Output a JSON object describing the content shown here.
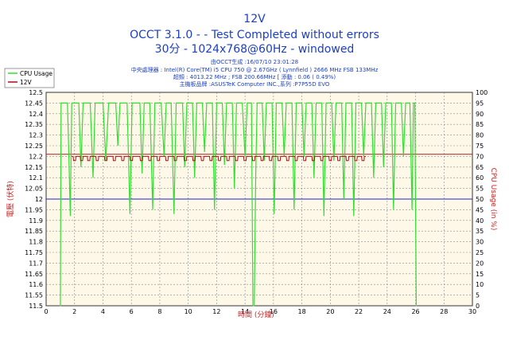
{
  "chart_data": {
    "type": "line",
    "title": "12V",
    "subtitle_lines": [
      "OCCT 3.1.0 -  - Test Completed without errors",
      "30分 - 1024x768@60Hz - windowed"
    ],
    "info_lines": [
      "由OCCT生成 :16/07/10 23:01:28",
      "中央處理器 : Intel(R) Core(TM) i5 CPU 750 @ 2.67GHz ( Lynnfield ) 2666 MHz FSB 133MHz",
      "超頻 : 4013.22 MHz ; FSB 200.66MHz [ 添動 : 0.06 ( 0.49%)",
      "主機板品牌 :ASUSTeK Computer INC.,系列 :P7P55D EVO"
    ],
    "xlabel": "時間 (分鐘)",
    "ylabel_left": "電壓 (伏特)",
    "ylabel_right": "CPU Usage (in %)",
    "xlim": [
      0,
      30
    ],
    "ylim_left": [
      11.5,
      12.5
    ],
    "ylim_right": [
      0,
      100
    ],
    "x_ticks": [
      "0",
      "2",
      "4",
      "6",
      "8",
      "10",
      "12",
      "14",
      "16",
      "18",
      "20",
      "22",
      "24",
      "26",
      "28",
      "30"
    ],
    "y_left_ticks": [
      "11.5",
      "11.55",
      "11.6",
      "11.65",
      "11.7",
      "11.75",
      "11.8",
      "11.85",
      "11.9",
      "11.95",
      "12",
      "12.05",
      "12.1",
      "12.15",
      "12.2",
      "12.25",
      "12.3",
      "12.35",
      "12.4",
      "12.45",
      "12.5"
    ],
    "y_right_ticks": [
      "0",
      "5",
      "10",
      "15",
      "20",
      "25",
      "30",
      "35",
      "40",
      "45",
      "50",
      "55",
      "60",
      "65",
      "70",
      "75",
      "80",
      "85",
      "90",
      "95",
      "100"
    ],
    "grid": true,
    "legend_position": "top-left",
    "series": [
      {
        "name": "CPU Usage",
        "axis": "right",
        "color": "#33dd33",
        "points": [
          [
            0.95,
            0
          ],
          [
            1.0,
            0
          ],
          [
            1.05,
            95
          ],
          [
            1.5,
            95
          ],
          [
            1.6,
            70
          ],
          [
            1.7,
            42
          ],
          [
            1.8,
            95
          ],
          [
            2.3,
            95
          ],
          [
            2.45,
            65
          ],
          [
            2.6,
            95
          ],
          [
            3.1,
            95
          ],
          [
            3.3,
            60
          ],
          [
            3.45,
            95
          ],
          [
            4.0,
            95
          ],
          [
            4.2,
            68
          ],
          [
            4.4,
            95
          ],
          [
            4.9,
            95
          ],
          [
            5.05,
            75
          ],
          [
            5.2,
            95
          ],
          [
            5.7,
            95
          ],
          [
            5.9,
            43
          ],
          [
            6.05,
            95
          ],
          [
            6.6,
            95
          ],
          [
            6.75,
            62
          ],
          [
            6.9,
            95
          ],
          [
            7.3,
            95
          ],
          [
            7.5,
            45
          ],
          [
            7.65,
            95
          ],
          [
            8.1,
            95
          ],
          [
            8.3,
            70
          ],
          [
            8.45,
            95
          ],
          [
            8.8,
            95
          ],
          [
            9.0,
            43
          ],
          [
            9.15,
            95
          ],
          [
            9.6,
            95
          ],
          [
            9.75,
            65
          ],
          [
            9.9,
            95
          ],
          [
            10.3,
            95
          ],
          [
            10.45,
            60
          ],
          [
            10.6,
            95
          ],
          [
            11.0,
            95
          ],
          [
            11.15,
            72
          ],
          [
            11.3,
            95
          ],
          [
            11.7,
            95
          ],
          [
            11.85,
            45
          ],
          [
            12.0,
            95
          ],
          [
            12.4,
            95
          ],
          [
            12.55,
            66
          ],
          [
            12.7,
            95
          ],
          [
            13.1,
            95
          ],
          [
            13.25,
            55
          ],
          [
            13.4,
            95
          ],
          [
            13.8,
            95
          ],
          [
            14.0,
            70
          ],
          [
            14.15,
            95
          ],
          [
            14.45,
            95
          ],
          [
            14.55,
            0
          ],
          [
            14.65,
            0
          ],
          [
            14.75,
            60
          ],
          [
            14.85,
            95
          ],
          [
            15.2,
            95
          ],
          [
            15.35,
            68
          ],
          [
            15.5,
            95
          ],
          [
            15.9,
            95
          ],
          [
            16.05,
            43
          ],
          [
            16.2,
            95
          ],
          [
            16.6,
            95
          ],
          [
            16.75,
            70
          ],
          [
            16.9,
            95
          ],
          [
            17.3,
            95
          ],
          [
            17.45,
            45
          ],
          [
            17.6,
            95
          ],
          [
            18.0,
            95
          ],
          [
            18.15,
            70
          ],
          [
            18.3,
            95
          ],
          [
            18.7,
            95
          ],
          [
            18.85,
            60
          ],
          [
            19.0,
            95
          ],
          [
            19.4,
            95
          ],
          [
            19.55,
            42
          ],
          [
            19.7,
            95
          ],
          [
            20.1,
            95
          ],
          [
            20.25,
            68
          ],
          [
            20.4,
            95
          ],
          [
            20.8,
            95
          ],
          [
            20.95,
            50
          ],
          [
            21.1,
            95
          ],
          [
            21.5,
            95
          ],
          [
            21.65,
            42
          ],
          [
            21.8,
            95
          ],
          [
            22.2,
            95
          ],
          [
            22.35,
            70
          ],
          [
            22.5,
            95
          ],
          [
            22.9,
            95
          ],
          [
            23.05,
            60
          ],
          [
            23.2,
            95
          ],
          [
            23.6,
            95
          ],
          [
            23.75,
            65
          ],
          [
            23.9,
            95
          ],
          [
            24.3,
            95
          ],
          [
            24.45,
            45
          ],
          [
            24.6,
            95
          ],
          [
            25.0,
            95
          ],
          [
            25.15,
            70
          ],
          [
            25.3,
            95
          ],
          [
            25.6,
            95
          ],
          [
            25.75,
            45
          ],
          [
            25.85,
            95
          ],
          [
            25.95,
            95
          ],
          [
            26.05,
            0
          ],
          [
            26.1,
            0
          ]
        ]
      },
      {
        "name": "12V",
        "axis": "left",
        "color": "#aa1111",
        "baseline": 12.2,
        "pulse_value": 12.18,
        "pulses": [
          [
            1.9,
            2.1
          ],
          [
            2.4,
            2.6
          ],
          [
            2.9,
            3.1
          ],
          [
            3.5,
            3.7
          ],
          [
            4.1,
            4.3
          ],
          [
            4.7,
            4.9
          ],
          [
            5.3,
            5.5
          ],
          [
            5.9,
            6.1
          ],
          [
            6.6,
            6.8
          ],
          [
            7.2,
            7.4
          ],
          [
            7.8,
            8.0
          ],
          [
            8.4,
            8.6
          ],
          [
            9.0,
            9.2
          ],
          [
            9.7,
            9.9
          ],
          [
            10.3,
            10.5
          ],
          [
            10.9,
            11.1
          ],
          [
            11.5,
            11.7
          ],
          [
            12.1,
            12.3
          ],
          [
            12.7,
            12.9
          ],
          [
            13.3,
            13.5
          ],
          [
            13.9,
            14.1
          ],
          [
            14.5,
            14.7
          ],
          [
            15.1,
            15.3
          ],
          [
            15.7,
            15.9
          ],
          [
            16.3,
            16.5
          ],
          [
            16.9,
            17.1
          ],
          [
            17.5,
            17.7
          ],
          [
            18.1,
            18.3
          ],
          [
            18.7,
            18.9
          ],
          [
            19.3,
            19.5
          ],
          [
            19.9,
            20.1
          ],
          [
            20.5,
            20.7
          ],
          [
            21.1,
            21.3
          ],
          [
            21.7,
            21.9
          ],
          [
            22.2,
            22.4
          ]
        ],
        "x_start": 1.8,
        "x_end": 22.5
      }
    ],
    "reference_lines": [
      {
        "axis": "left",
        "value": 12.21,
        "color": "#aa2222"
      },
      {
        "axis": "left",
        "value": 12.0,
        "color": "#2222cc"
      }
    ]
  }
}
